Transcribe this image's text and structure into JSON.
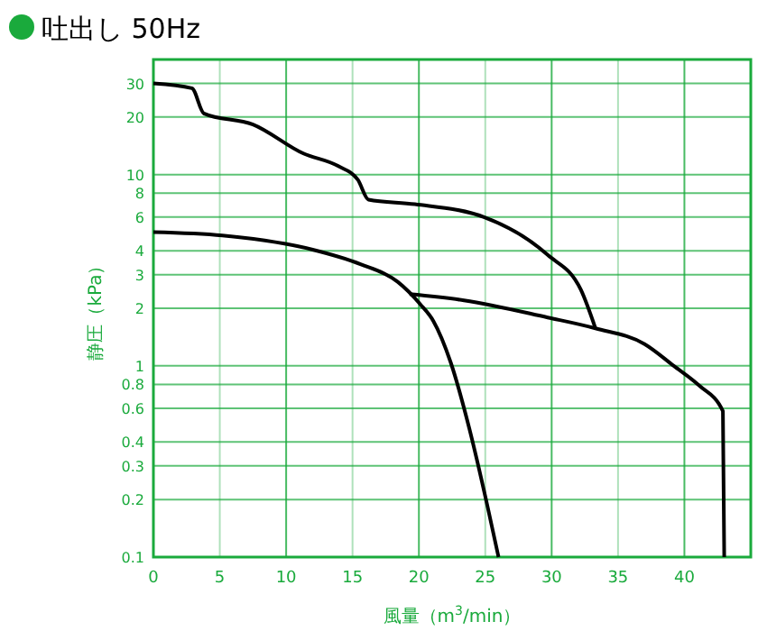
{
  "chart_data": {
    "type": "line",
    "title": "吐出し 50Hz",
    "xlabel": "風量（m$^{3}$/min）",
    "ylabel": "静圧（kPa）",
    "log": "y",
    "grid": true,
    "marker": "none",
    "line_style": "solid",
    "xlim": [
      0,
      45
    ],
    "xticks": [
      0,
      5,
      10,
      15,
      20,
      25,
      30,
      35,
      40
    ],
    "ylim": [
      0.1,
      40
    ],
    "yticks": [
      0.1,
      0.2,
      0.3,
      0.4,
      0.6,
      0.8,
      1,
      2,
      3,
      4,
      6,
      8,
      10,
      20,
      30
    ],
    "series": [
      {
        "color": "#000000",
        "x": [
          0,
          2.9,
          3.8,
          7.5,
          11.3,
          13.9,
          15.4,
          16.2,
          19.7,
          24.9,
          29.7,
          32.2,
          33.3
        ],
        "values": [
          30,
          28.3,
          20.9,
          18.3,
          12.9,
          11.1,
          9.4,
          7.4,
          7.0,
          6.0,
          3.8,
          2.5,
          1.57
        ]
      },
      {
        "color": "#000000",
        "x": [
          0,
          5.2,
          12,
          15.6,
          18.4,
          20.1,
          21.1,
          22.4,
          23.8,
          25.2,
          26
        ],
        "values": [
          5.0,
          4.8,
          4.05,
          3.4,
          2.75,
          2.1,
          1.71,
          1.04,
          0.47,
          0.18,
          0.1
        ]
      },
      {
        "color": "#000000",
        "x": [
          19.3,
          23.4,
          29.7,
          33.3,
          37,
          39.2,
          41.1,
          42.9,
          43
        ],
        "values": [
          2.37,
          2.2,
          1.79,
          1.57,
          1.3,
          1.0,
          0.79,
          0.58,
          0.1
        ]
      }
    ]
  }
}
